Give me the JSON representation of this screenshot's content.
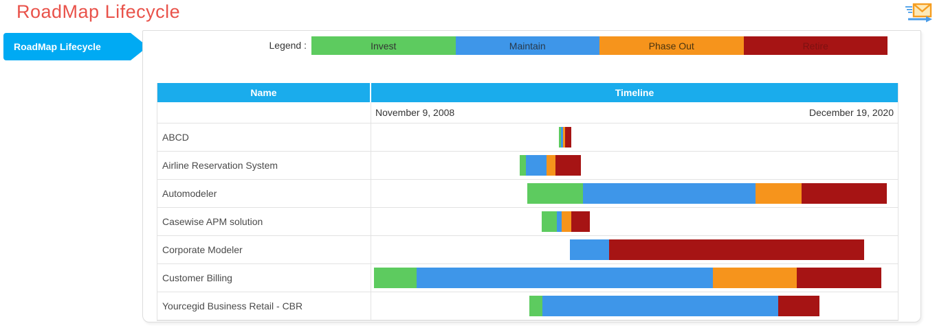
{
  "header": {
    "title": "RoadMap Lifecycle"
  },
  "sidebar": {
    "items": [
      {
        "label": "RoadMap Lifecycle",
        "active": true,
        "color": "#00aaf3"
      }
    ]
  },
  "legend": {
    "label": "Legend :",
    "items": [
      {
        "label": "Invest",
        "color": "#5dcb5f",
        "text_color": "#333333"
      },
      {
        "label": "Maintain",
        "color": "#3e96e9",
        "text_color": "#28394a"
      },
      {
        "label": "Phase Out",
        "color": "#f6941c",
        "text_color": "#4a3410"
      },
      {
        "label": "Retire",
        "color": "#a61414",
        "text_color": "#7d1111"
      }
    ]
  },
  "chart_data": {
    "type": "gantt",
    "title": "RoadMap Lifecycle",
    "columns": [
      "Name",
      "Timeline"
    ],
    "timeline": {
      "start_label": "November 9, 2008",
      "end_label": "December 19, 2020",
      "axis_note": "segment start/end are relative positions 0-767 spanning the timeline window",
      "range": [
        0,
        767
      ]
    },
    "phases": {
      "Invest": "#5dcb5f",
      "Maintain": "#3e96e9",
      "Phase Out": "#f6941c",
      "Retire": "#a61414"
    },
    "header_color": "#1aacec",
    "rows": [
      {
        "name": "ABCD",
        "segments": [
          {
            "phase": "Invest",
            "start": 273,
            "end": 276
          },
          {
            "phase": "Maintain",
            "start": 276,
            "end": 279
          },
          {
            "phase": "Phase Out",
            "start": 279,
            "end": 282
          },
          {
            "phase": "Retire",
            "start": 282,
            "end": 291
          }
        ]
      },
      {
        "name": "Airline Reservation System",
        "segments": [
          {
            "phase": "Invest",
            "start": 216,
            "end": 225
          },
          {
            "phase": "Maintain",
            "start": 225,
            "end": 255
          },
          {
            "phase": "Phase Out",
            "start": 255,
            "end": 268
          },
          {
            "phase": "Retire",
            "start": 268,
            "end": 305
          }
        ]
      },
      {
        "name": "Automodeler",
        "segments": [
          {
            "phase": "Invest",
            "start": 227,
            "end": 308
          },
          {
            "phase": "Maintain",
            "start": 308,
            "end": 559
          },
          {
            "phase": "Phase Out",
            "start": 559,
            "end": 626
          },
          {
            "phase": "Retire",
            "start": 626,
            "end": 750
          }
        ]
      },
      {
        "name": "Casewise APM solution",
        "segments": [
          {
            "phase": "Invest",
            "start": 248,
            "end": 270
          },
          {
            "phase": "Maintain",
            "start": 270,
            "end": 277
          },
          {
            "phase": "Phase Out",
            "start": 277,
            "end": 291
          },
          {
            "phase": "Retire",
            "start": 291,
            "end": 318
          }
        ]
      },
      {
        "name": "Corporate Modeler",
        "segments": [
          {
            "phase": "Maintain",
            "start": 289,
            "end": 346
          },
          {
            "phase": "Retire",
            "start": 346,
            "end": 717
          }
        ]
      },
      {
        "name": "Customer Billing",
        "segments": [
          {
            "phase": "Invest",
            "start": 4,
            "end": 66
          },
          {
            "phase": "Maintain",
            "start": 66,
            "end": 497
          },
          {
            "phase": "Phase Out",
            "start": 497,
            "end": 619
          },
          {
            "phase": "Retire",
            "start": 619,
            "end": 742
          }
        ]
      },
      {
        "name": "Yourcegid Business Retail - CBR",
        "segments": [
          {
            "phase": "Invest",
            "start": 230,
            "end": 249
          },
          {
            "phase": "Maintain",
            "start": 249,
            "end": 592
          },
          {
            "phase": "Retire",
            "start": 592,
            "end": 652
          }
        ]
      }
    ]
  }
}
